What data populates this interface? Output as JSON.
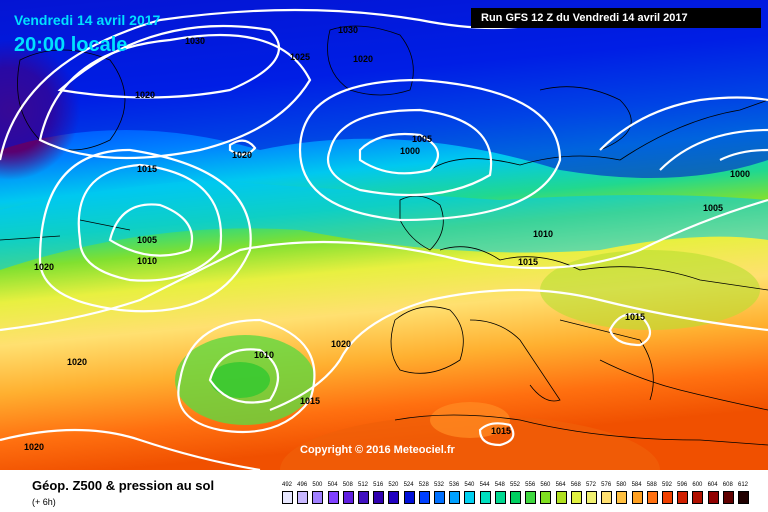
{
  "header": {
    "date": "Vendredi 14 avril 2017",
    "time": "20:00 locale",
    "run": "Run GFS 12 Z du Vendredi 14 avril 2017"
  },
  "footer": {
    "caption": "Géop. Z500 & pression au sol",
    "subcaption": "(+ 6h)",
    "copyright": "Copyright © 2016 Meteociel.fr"
  },
  "legend": {
    "ticks": [
      "492",
      "496",
      "500",
      "504",
      "508",
      "512",
      "516",
      "520",
      "524",
      "528",
      "532",
      "536",
      "540",
      "544",
      "548",
      "552",
      "556",
      "560",
      "564",
      "568",
      "572",
      "576",
      "580",
      "584",
      "588",
      "592",
      "596",
      "600",
      "604",
      "608",
      "612"
    ],
    "colors": [
      "#e8e8ff",
      "#c8b8ff",
      "#a080ff",
      "#8040ff",
      "#6020e0",
      "#4010c0",
      "#3000b0",
      "#2000c0",
      "#0010d8",
      "#0040ff",
      "#0070ff",
      "#00a0ff",
      "#00d0f0",
      "#00e0c0",
      "#00d890",
      "#00d060",
      "#40d840",
      "#80e020",
      "#b0e020",
      "#e0f040",
      "#f0f070",
      "#ffe070",
      "#ffc040",
      "#ffa020",
      "#ff7010",
      "#f04000",
      "#d02000",
      "#b01000",
      "#900000",
      "#600000",
      "#200000"
    ]
  },
  "isobars": [
    {
      "label": "1030"
    },
    {
      "label": "1030"
    },
    {
      "label": "1025"
    },
    {
      "label": "1020"
    },
    {
      "label": "1020"
    },
    {
      "label": "1020"
    },
    {
      "label": "1015"
    },
    {
      "label": "1005"
    },
    {
      "label": "1010"
    },
    {
      "label": "1020"
    },
    {
      "label": "1020"
    },
    {
      "label": "1020"
    },
    {
      "label": "1005"
    },
    {
      "label": "1000"
    },
    {
      "label": "1010"
    },
    {
      "label": "1015"
    },
    {
      "label": "1000"
    },
    {
      "label": "1005"
    },
    {
      "label": "1015"
    },
    {
      "label": "1010"
    },
    {
      "label": "1015"
    },
    {
      "label": "1020"
    },
    {
      "label": "1015"
    },
    {
      "label": "1020"
    }
  ]
}
